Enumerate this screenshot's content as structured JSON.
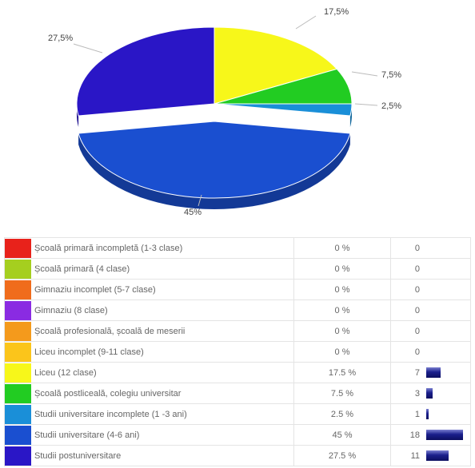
{
  "chart_data": {
    "type": "pie",
    "slices": [
      {
        "label": "Școală primară incompletă (1-3 clase)",
        "percent": 0,
        "percent_text": "0 %",
        "count": 0,
        "color": "#e8221b"
      },
      {
        "label": "Școală primară (4 clase)",
        "percent": 0,
        "percent_text": "0 %",
        "count": 0,
        "color": "#a5cf1f"
      },
      {
        "label": "Gimnaziu incomplet (5-7 clase)",
        "percent": 0,
        "percent_text": "0 %",
        "count": 0,
        "color": "#f06c1c"
      },
      {
        "label": "Gimnaziu (8 clase)",
        "percent": 0,
        "percent_text": "0 %",
        "count": 0,
        "color": "#8a2be2"
      },
      {
        "label": "Școală profesională, școală de meserii",
        "percent": 0,
        "percent_text": "0 %",
        "count": 0,
        "color": "#f49a1c"
      },
      {
        "label": "Liceu incomplet (9-11 clase)",
        "percent": 0,
        "percent_text": "0 %",
        "count": 0,
        "color": "#fbc51b"
      },
      {
        "label": "Liceu (12 clase)",
        "percent": 17.5,
        "percent_text": "17.5 %",
        "count": 7,
        "color": "#f7f71a",
        "pie_label": "17,5%"
      },
      {
        "label": "Școală postliceală, colegiu universitar",
        "percent": 7.5,
        "percent_text": "7.5 %",
        "count": 3,
        "color": "#22cc22",
        "pie_label": "7,5%"
      },
      {
        "label": "Studii universitare incomplete (1 -3 ani)",
        "percent": 2.5,
        "percent_text": "2.5 %",
        "count": 1,
        "color": "#1a8fd8",
        "pie_label": "2,5%"
      },
      {
        "label": "Studii universitare (4-6 ani)",
        "percent": 45,
        "percent_text": "45 %",
        "count": 18,
        "color": "#1a4fd0",
        "pie_label": "45%"
      },
      {
        "label": "Studii postuniversitare",
        "percent": 27.5,
        "percent_text": "27.5 %",
        "count": 11,
        "color": "#2a16c6",
        "pie_label": "27,5%"
      }
    ]
  }
}
